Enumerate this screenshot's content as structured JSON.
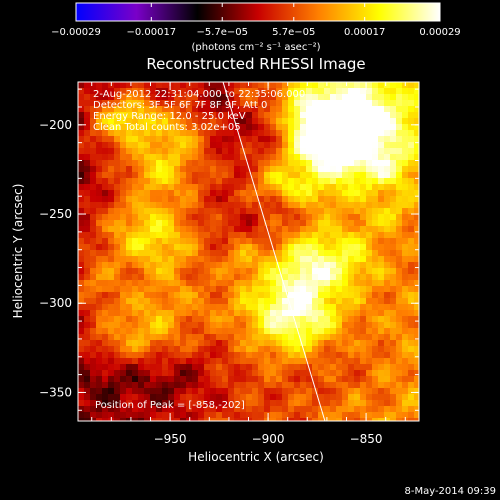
{
  "chart_data": {
    "type": "heatmap",
    "title": "Reconstructed RHESSI Image",
    "xlabel": "Heliocentric X (arcsec)",
    "ylabel": "Heliocentric Y (arcsec)",
    "xlim": [
      -997,
      -823
    ],
    "ylim": [
      -366,
      -176
    ],
    "x_ticks": [
      {
        "value": -950,
        "label": "−950"
      },
      {
        "value": -900,
        "label": "−900"
      },
      {
        "value": -850,
        "label": "−850"
      }
    ],
    "y_ticks": [
      {
        "value": -200,
        "label": "−200"
      },
      {
        "value": -250,
        "label": "−250"
      },
      {
        "value": -300,
        "label": "−300"
      },
      {
        "value": -350,
        "label": "−350"
      }
    ],
    "colorbar": {
      "range": [
        -0.00029,
        0.00029
      ],
      "colors": [
        "#0000ff",
        "#7a00c8",
        "#000000",
        "#c80000",
        "#ff8000",
        "#ffff00",
        "#ffffff"
      ],
      "tick_values": [
        -0.00029,
        -0.00017,
        -5.7e-05,
        5.7e-05,
        0.00017,
        0.00029
      ],
      "tick_labels": [
        "−0.00029",
        "−0.00017",
        "−5.7e−05",
        "5.7e−05",
        "0.00017",
        "0.00029"
      ],
      "units_label": "(photons cm⁻² s⁻¹ asec⁻²)"
    },
    "annotations": [
      "2-Aug-2012 22:31:04.000 to 22:35:06.000",
      "Detectors: 3F 5F 6F 7F 8F 9F, Att 0",
      "Energy Range: 12.0 - 25.0 keV",
      "Clean    Total counts: 3.02e+05"
    ],
    "peak_label": "Position of Peak = [-858,-202]",
    "peak": [
      -858,
      -202
    ],
    "limb_line": [
      [
        -923,
        -176
      ],
      [
        -871,
        -366
      ]
    ]
  },
  "timestamp": "8-May-2014 09:39"
}
